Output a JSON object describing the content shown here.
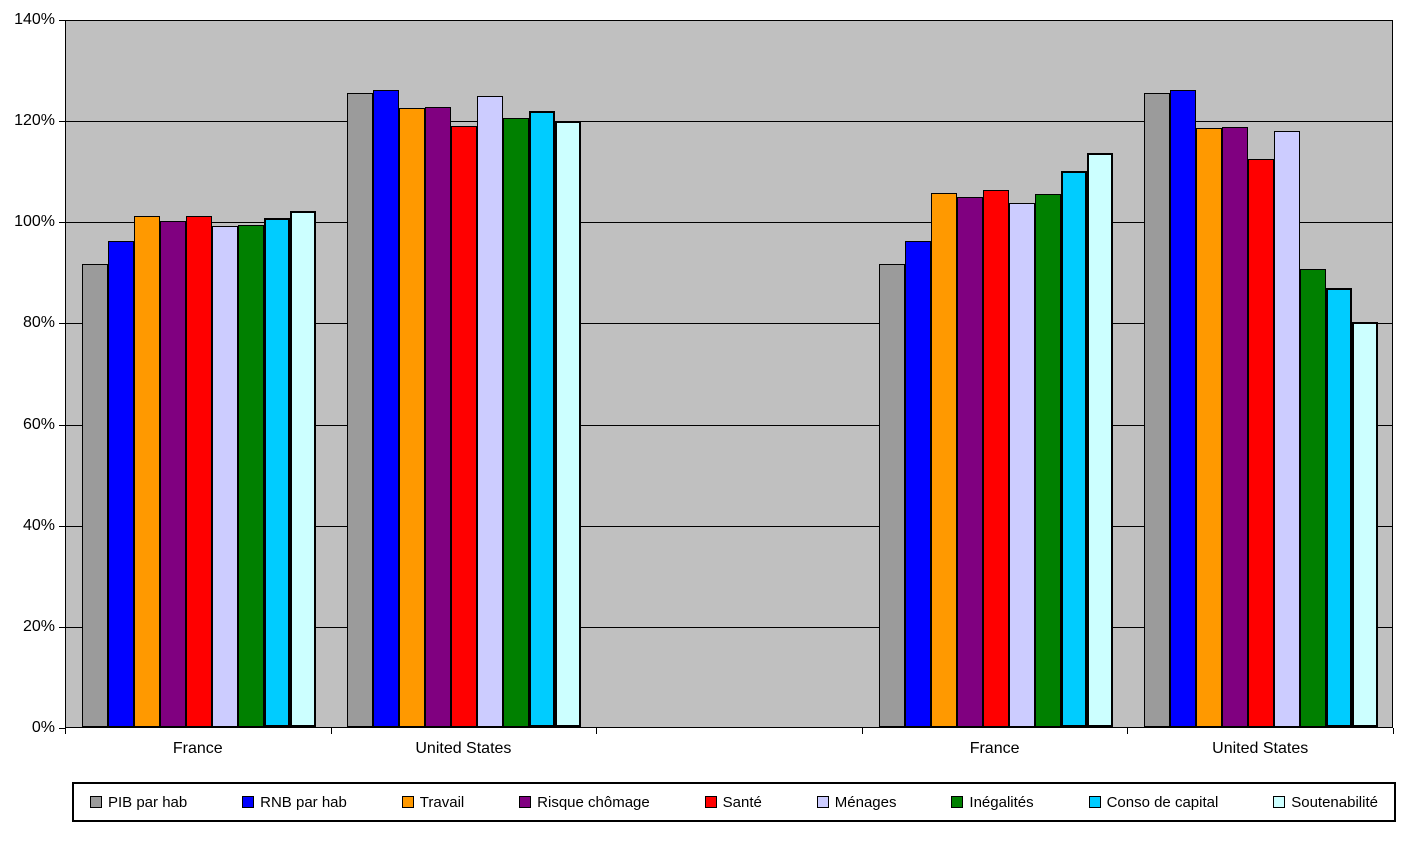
{
  "chart_data": {
    "type": "bar",
    "title": "",
    "xlabel": "",
    "ylabel": "",
    "ylim": [
      0,
      140
    ],
    "grid": "horizontal",
    "plot_background": "#c0c0c0",
    "gridline_color": "#000000",
    "legend_position": "bottom",
    "y_tick_step": 20,
    "y_tick_labels": [
      "0%",
      "20%",
      "40%",
      "60%",
      "80%",
      "100%",
      "120%",
      "140%"
    ],
    "categories": [
      "France",
      "United States",
      "",
      "France",
      "United States"
    ],
    "series": [
      {
        "name": "PIB par hab",
        "color": "#9b9b9b",
        "border": "thin",
        "values": [
          92.0,
          125.8,
          null,
          92.0,
          125.8
        ]
      },
      {
        "name": "RNB par hab",
        "color": "#0000ff",
        "border": "thin",
        "values": [
          96.5,
          126.4,
          null,
          96.5,
          126.3
        ]
      },
      {
        "name": "Travail",
        "color": "#ff9900",
        "border": "thin",
        "values": [
          101.5,
          122.8,
          null,
          106.0,
          118.9
        ]
      },
      {
        "name": "Risque chômage",
        "color": "#800080",
        "border": "thin",
        "values": [
          100.5,
          123.0,
          null,
          105.1,
          119.1
        ]
      },
      {
        "name": "Santé",
        "color": "#ff0000",
        "border": "thin",
        "values": [
          101.5,
          119.2,
          null,
          106.6,
          112.8
        ]
      },
      {
        "name": "Ménages",
        "color": "#ccccff",
        "border": "thin",
        "values": [
          99.4,
          125.2,
          null,
          104.1,
          118.2
        ]
      },
      {
        "name": "Inégalités",
        "color": "#008000",
        "border": "thin",
        "values": [
          99.6,
          120.8,
          null,
          105.8,
          91.0
        ]
      },
      {
        "name": "Conso de capital",
        "color": "#00ccff",
        "border": "thick",
        "values": [
          101.1,
          122.3,
          null,
          110.4,
          87.2
        ]
      },
      {
        "name": "Soutenabilité",
        "color": "#ccffff",
        "border": "thick",
        "values": [
          102.4,
          120.2,
          null,
          113.9,
          80.5
        ]
      }
    ]
  },
  "layout_note_colors": {
    "axis": "#000000",
    "text": "#000000",
    "legend_background": "#ffffff"
  }
}
